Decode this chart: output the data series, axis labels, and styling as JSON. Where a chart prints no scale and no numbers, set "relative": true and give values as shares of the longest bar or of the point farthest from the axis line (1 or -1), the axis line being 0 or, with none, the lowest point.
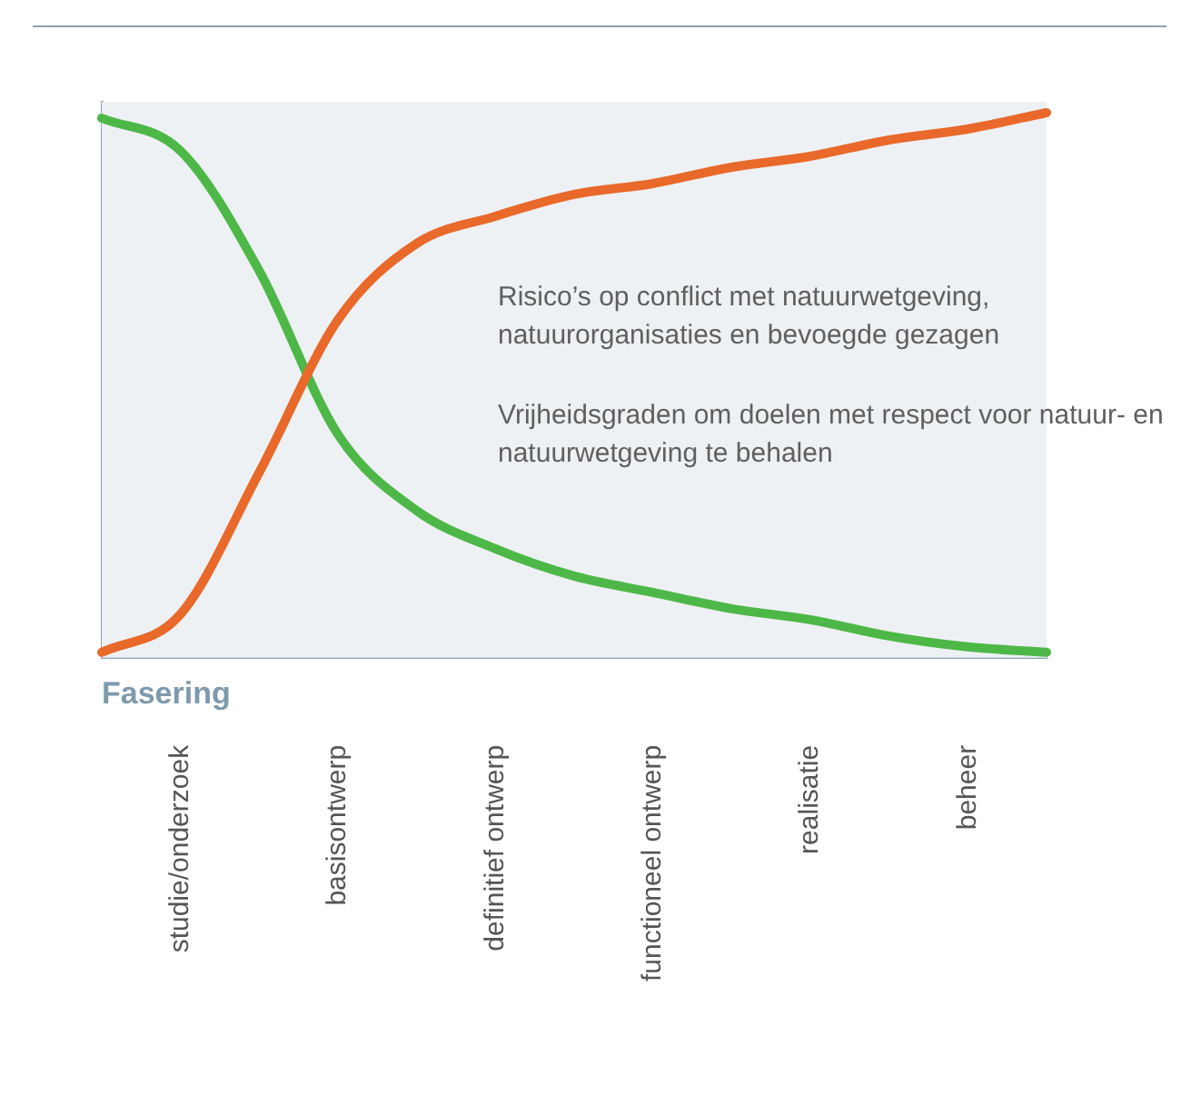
{
  "chart_data": {
    "type": "line",
    "relative": true,
    "xlabel": "Fasering",
    "categories": [
      null,
      "studie/onderzoek",
      null,
      "basisontwerp",
      null,
      "definitief ontwerp",
      null,
      "functioneel ontwerp",
      null,
      "realisatie",
      null,
      "beheer",
      null
    ],
    "series": [
      {
        "name": "Risico’s op conflict met natuurwetgeving, natuurorganisaties en bevoegde gezagen",
        "color": "#e8692a",
        "values": [
          0.01,
          0.08,
          0.34,
          0.62,
          0.76,
          0.81,
          0.85,
          0.87,
          0.9,
          0.92,
          0.95,
          0.97,
          1.0
        ]
      },
      {
        "name": "Vrijheidsgraden om doelen met respect voor natuur- en natuurwetgeving te behalen",
        "color": "#4db848",
        "values": [
          0.99,
          0.93,
          0.71,
          0.41,
          0.27,
          0.2,
          0.15,
          0.12,
          0.09,
          0.07,
          0.04,
          0.02,
          0.01
        ]
      }
    ],
    "grid": false,
    "legend": false,
    "marker": "none",
    "line_style": "solid"
  }
}
